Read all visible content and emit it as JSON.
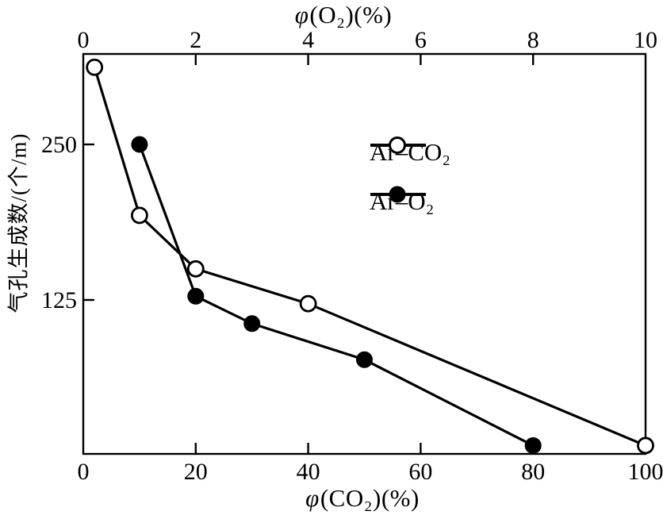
{
  "figure": {
    "background": "#ffffff",
    "ink": "#000000"
  },
  "chart_data": {
    "type": "line",
    "grid": false,
    "axes": {
      "top_x": {
        "label_phi": "φ",
        "label_rest": "(O₂)(%)",
        "range": [
          0,
          10
        ],
        "ticks": [
          0,
          2,
          4,
          6,
          8,
          10
        ]
      },
      "bottom_x": {
        "label_phi": "φ",
        "label_rest": "(CO₂)(%)",
        "range": [
          0,
          100
        ],
        "ticks": [
          0,
          20,
          40,
          60,
          80,
          100
        ]
      },
      "left_y": {
        "label": "气孔生成数/(个/m)",
        "range": [
          0,
          322
        ],
        "ticks": [
          125,
          250
        ]
      }
    },
    "series": [
      {
        "name": "Ar–CO₂",
        "slug": "ar-co2",
        "marker": "open-circle",
        "x_axis": "bottom_x",
        "x": [
          2,
          10,
          20,
          40,
          100
        ],
        "y": [
          312,
          193,
          150,
          122,
          8
        ]
      },
      {
        "name": "Ar–O₂",
        "slug": "ar-o2",
        "marker": "filled-circle",
        "x_axis": "top_x",
        "x": [
          1,
          2,
          3,
          5,
          8
        ],
        "y": [
          250,
          128,
          106,
          77,
          8
        ]
      }
    ],
    "legend": {
      "position": "upper-right-inside"
    }
  }
}
